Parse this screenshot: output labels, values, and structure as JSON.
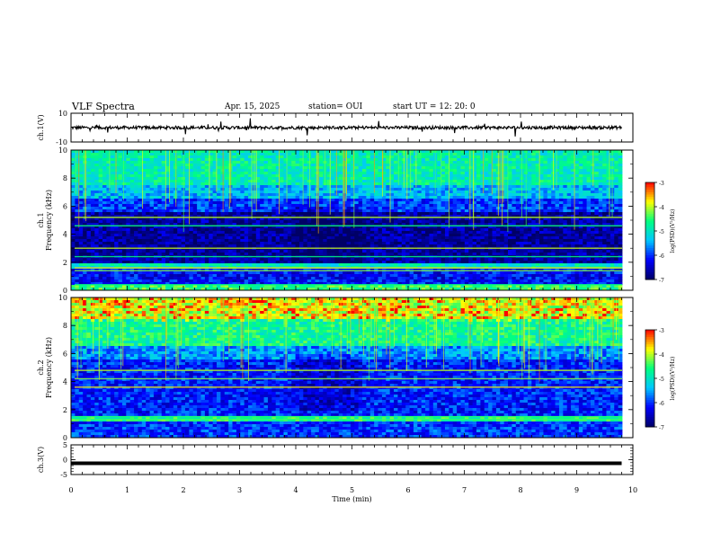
{
  "header": {
    "title": "VLF Spectra",
    "date": "Apr. 15, 2025",
    "station": "station= OUI",
    "start": "start  UT  =    12: 20: 0"
  },
  "chart_data": [
    {
      "type": "line",
      "panel": "ch1-waveform",
      "ylabel": "ch.1(V)",
      "ylim": [
        -10,
        10
      ],
      "yticks": [
        "10",
        "-10"
      ],
      "x": [
        0,
        1,
        2,
        3,
        4,
        5,
        6,
        7,
        8,
        9,
        9.8
      ],
      "y": [
        0,
        0,
        0,
        0,
        0,
        0,
        0,
        0,
        0,
        0,
        0
      ],
      "xlim": [
        0,
        10
      ]
    },
    {
      "type": "heatmap",
      "panel": "ch1-spectrogram",
      "ylabel": "ch.1\nFrequency (kHz)",
      "ylim": [
        0,
        10
      ],
      "xlim": [
        0,
        10
      ],
      "yticks": [
        "0",
        "2",
        "4",
        "6",
        "8",
        "10"
      ],
      "colorbar": {
        "label": "log(PSD)(V²/Hz)",
        "range": [
          -7,
          -3
        ],
        "ticks": [
          "-3",
          "-4",
          "-5",
          "-6",
          "-7"
        ]
      },
      "bands": [
        {
          "freq": [
            0,
            0.3
          ],
          "level": -4.5
        },
        {
          "freq": [
            0.3,
            1.5
          ],
          "level": -6.2
        },
        {
          "freq": [
            1.5,
            2.0
          ],
          "level": -5.0
        },
        {
          "freq": [
            2.0,
            5.5
          ],
          "level": -6.7
        },
        {
          "freq": [
            5.5,
            6.5
          ],
          "level": -6.0
        },
        {
          "freq": [
            6.5,
            7.5
          ],
          "level": -5.4
        },
        {
          "freq": [
            7.5,
            10
          ],
          "level": -4.9
        }
      ]
    },
    {
      "type": "heatmap",
      "panel": "ch2-spectrogram",
      "ylabel": "ch.2\nFrequency (kHz)",
      "ylim": [
        0,
        10
      ],
      "xlim": [
        0,
        10
      ],
      "yticks": [
        "0",
        "2",
        "4",
        "6",
        "8",
        "10"
      ],
      "colorbar": {
        "label": "log(PSD)(V²/Hz)",
        "range": [
          -7,
          -3
        ],
        "ticks": [
          "-3",
          "-4",
          "-5",
          "-6",
          "-7"
        ]
      },
      "bands": [
        {
          "freq": [
            0,
            1.2
          ],
          "level": -6.0
        },
        {
          "freq": [
            1.2,
            1.5
          ],
          "level": -4.6
        },
        {
          "freq": [
            1.5,
            5.5
          ],
          "level": -6.1
        },
        {
          "freq": [
            5.5,
            6.5
          ],
          "level": -5.6
        },
        {
          "freq": [
            6.5,
            8.5
          ],
          "level": -4.7
        },
        {
          "freq": [
            8.5,
            10
          ],
          "level": -4.0
        }
      ]
    },
    {
      "type": "line",
      "panel": "ch3-waveform",
      "ylabel": "ch.3(V)",
      "ylim": [
        -5,
        5
      ],
      "yticks": [
        "5",
        "0",
        "-5"
      ],
      "x": [
        0,
        9.8
      ],
      "y": [
        -1.2,
        -1.2
      ],
      "xlim": [
        0,
        10
      ]
    }
  ],
  "xaxis": {
    "label": "Time  (min)",
    "ticks": [
      "0",
      "1",
      "2",
      "3",
      "4",
      "5",
      "6",
      "7",
      "8",
      "9",
      "10"
    ]
  },
  "colors": {
    "background": "#ffffff",
    "ink": "#000000",
    "colormap": [
      "#000066",
      "#0000ff",
      "#00c8ff",
      "#00ff80",
      "#ffff00",
      "#ff0000"
    ]
  }
}
